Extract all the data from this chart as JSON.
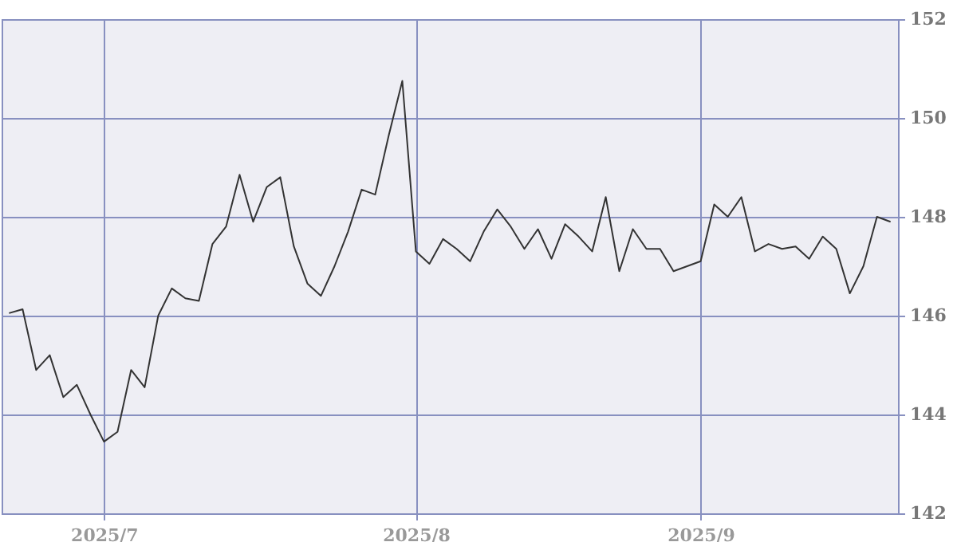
{
  "chart_data": {
    "type": "line",
    "categories": [
      null,
      null,
      null,
      null,
      null,
      null,
      null,
      "2025/7",
      null,
      null,
      null,
      null,
      null,
      null,
      null,
      null,
      null,
      null,
      null,
      null,
      null,
      null,
      null,
      null,
      null,
      null,
      null,
      null,
      null,
      null,
      "2025/8",
      null,
      null,
      null,
      null,
      null,
      null,
      null,
      null,
      null,
      null,
      null,
      null,
      null,
      null,
      null,
      null,
      null,
      null,
      null,
      null,
      "2025/9",
      null,
      null,
      null,
      null,
      null,
      null,
      null,
      null,
      null,
      null,
      null,
      null,
      null,
      null
    ],
    "series": [
      {
        "color": "#333333",
        "values": [
          146.05,
          146.13,
          144.9,
          145.2,
          144.35,
          144.6,
          144.0,
          143.45,
          143.65,
          144.9,
          144.55,
          146.0,
          146.55,
          146.35,
          146.3,
          147.45,
          147.8,
          148.85,
          147.9,
          148.6,
          148.8,
          147.4,
          146.65,
          146.4,
          147.0,
          147.7,
          148.55,
          148.45,
          149.65,
          150.75,
          147.3,
          147.05,
          147.55,
          147.35,
          147.1,
          147.7,
          148.15,
          147.8,
          147.35,
          147.75,
          147.15,
          147.85,
          147.6,
          147.3,
          148.4,
          146.9,
          147.75,
          147.35,
          147.35,
          146.9,
          147.0,
          147.1,
          148.25,
          148.0,
          148.4,
          147.3,
          147.45,
          147.35,
          147.4,
          147.15,
          147.6,
          147.35,
          146.45,
          147.0,
          148.0,
          147.9
        ]
      }
    ],
    "ylim": [
      142,
      152
    ],
    "yticks": [
      142,
      144,
      146,
      148,
      150,
      152
    ],
    "grid": true
  }
}
